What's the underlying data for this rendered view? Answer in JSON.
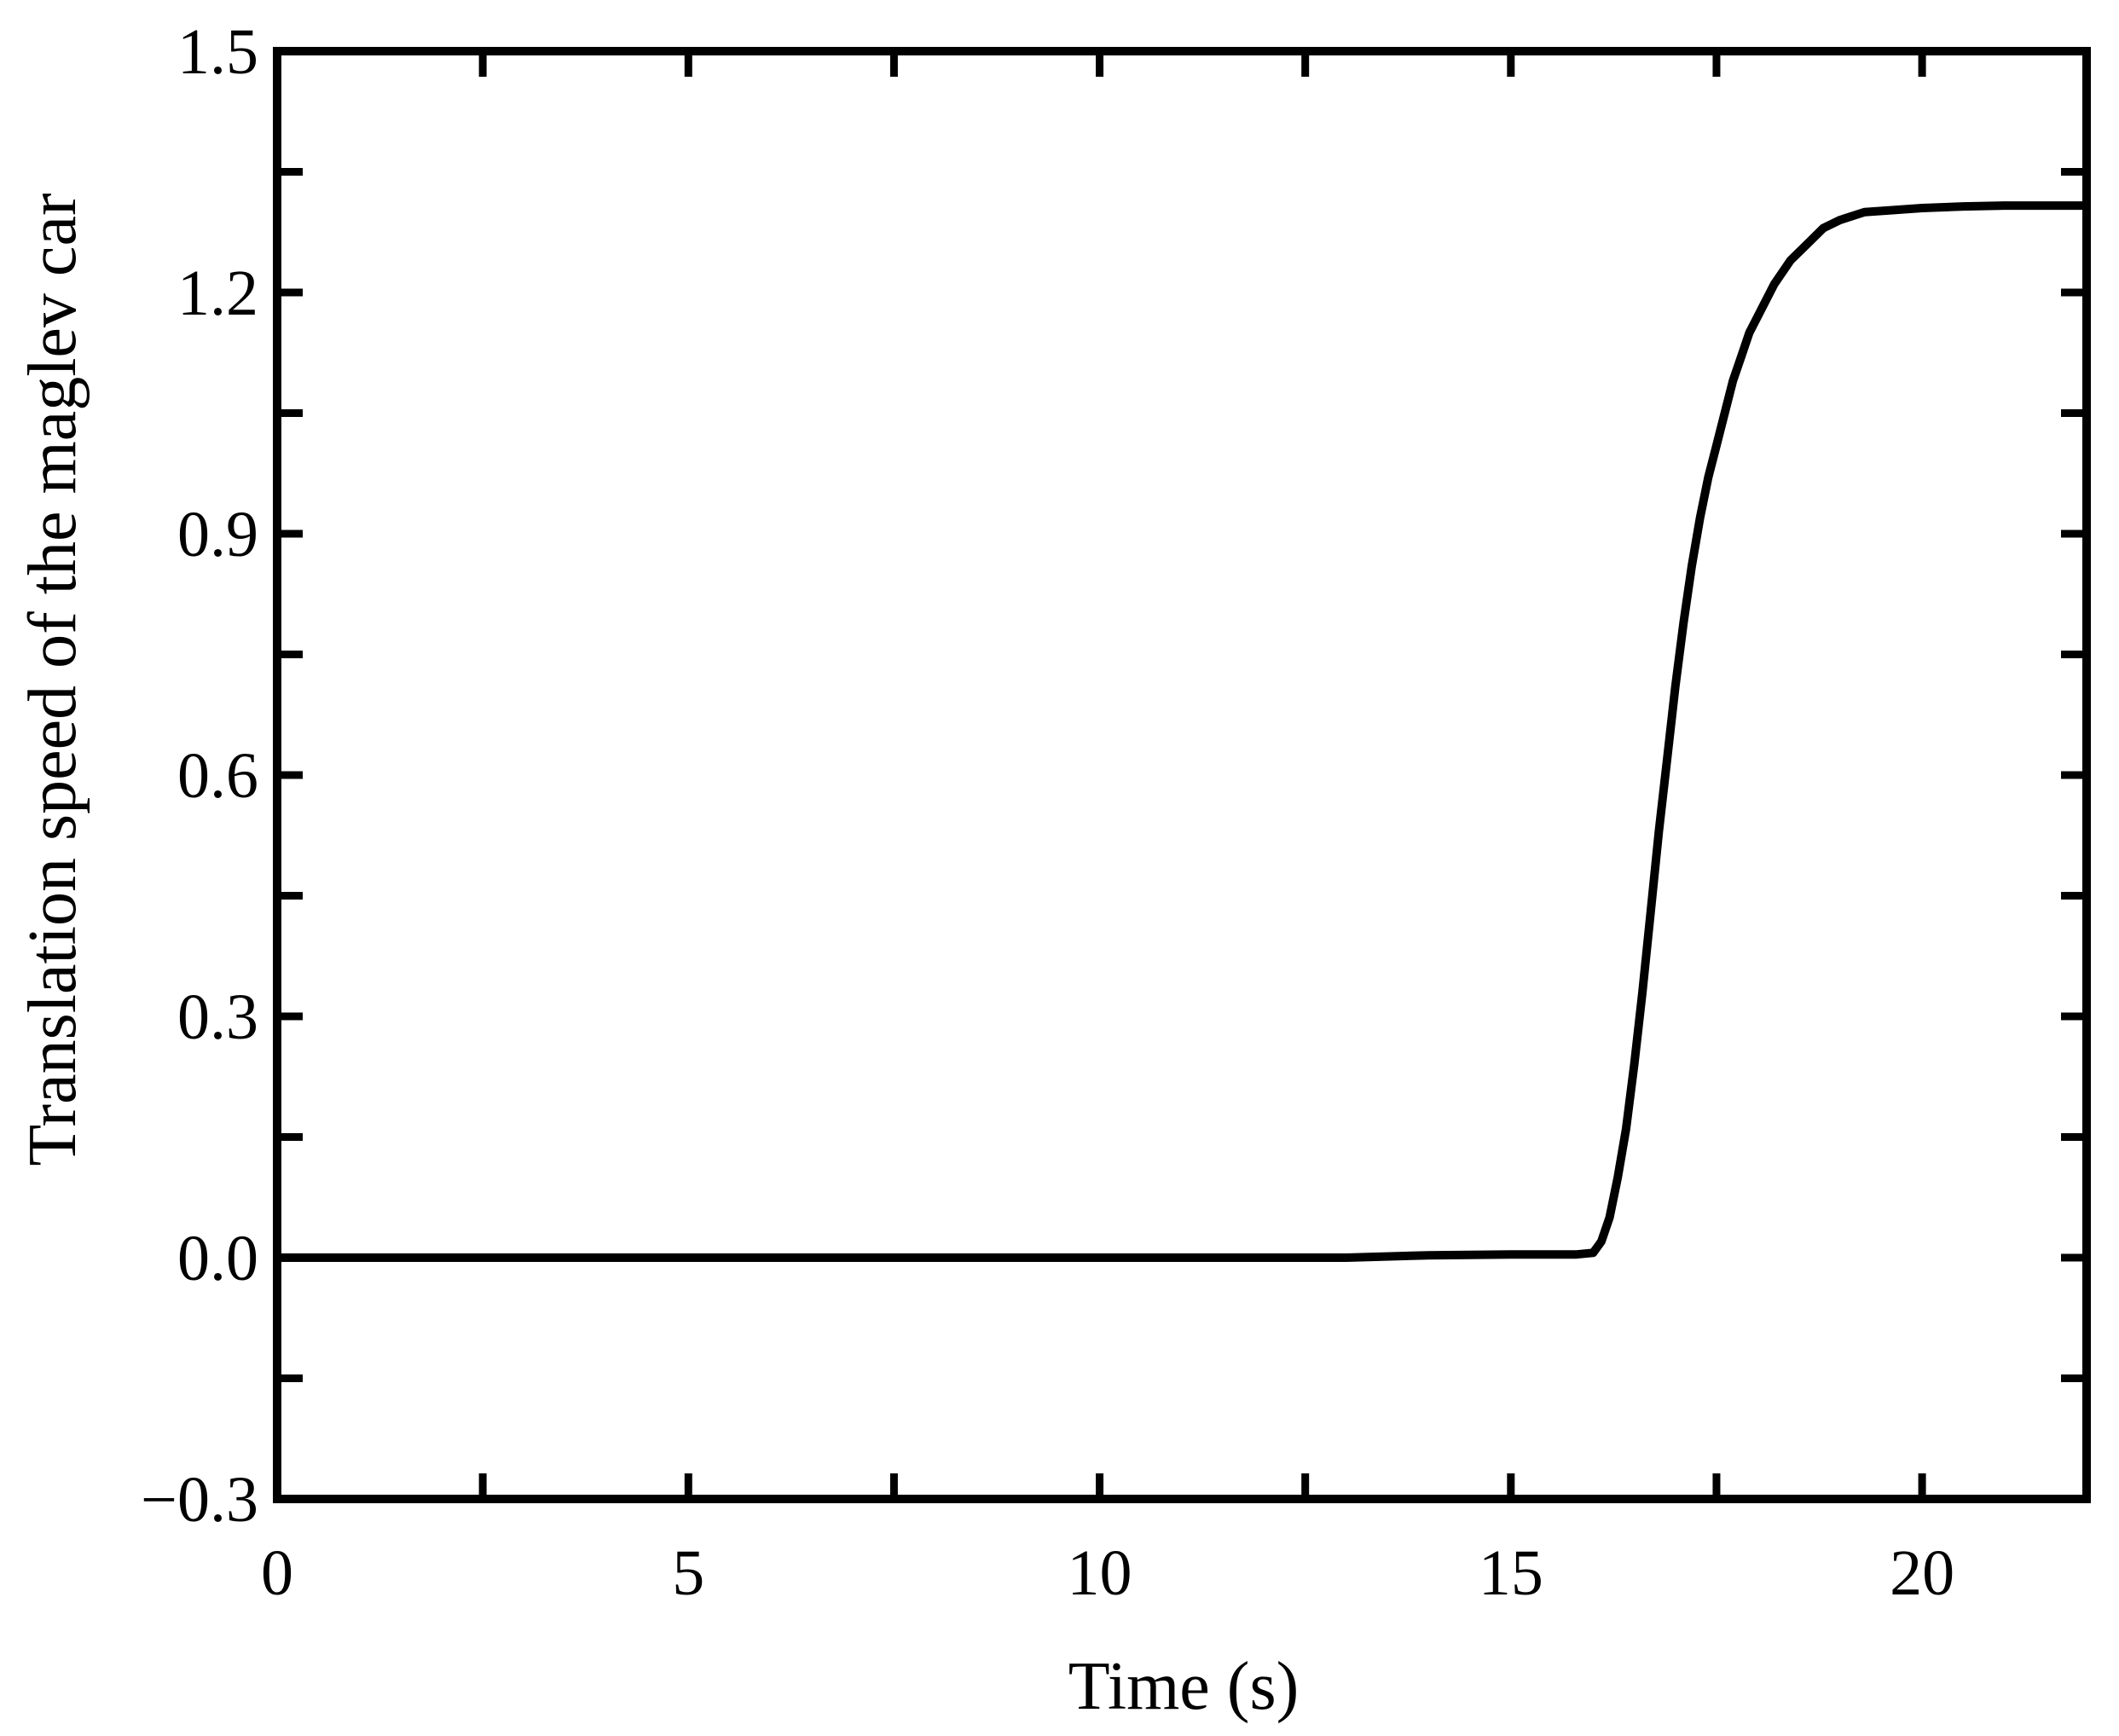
{
  "chart_data": {
    "type": "line",
    "title": "",
    "xlabel": "Time (s)",
    "ylabel": "Translation speed of the maglev car",
    "xlim": [
      0,
      22
    ],
    "ylim": [
      -0.3,
      1.5
    ],
    "x_ticks": [
      0,
      5,
      10,
      15,
      20
    ],
    "x_tick_labels": [
      "0",
      "5",
      "10",
      "15",
      "20"
    ],
    "x_minor_ticks": [
      2.5,
      7.5,
      12.5,
      17.5
    ],
    "y_ticks": [
      -0.3,
      0.0,
      0.3,
      0.6,
      0.9,
      1.2,
      1.5
    ],
    "y_tick_labels": [
      "−0.3",
      "0.0",
      "0.3",
      "0.6",
      "0.9",
      "1.2",
      "1.5"
    ],
    "y_minor_ticks": [
      -0.15,
      0.15,
      0.45,
      0.75,
      1.05,
      1.35
    ],
    "grid": false,
    "line_color": "#000000",
    "series": [
      {
        "x": [
          0,
          5,
          10,
          13,
          14,
          15,
          15.8,
          16.0,
          16.1,
          16.2,
          16.3,
          16.4,
          16.5,
          16.6,
          16.7,
          16.8,
          16.9,
          17.0,
          17.1,
          17.2,
          17.3,
          17.4,
          17.5,
          17.6,
          17.7,
          17.8,
          17.9,
          18.0,
          18.2,
          18.4,
          18.6,
          18.8,
          19.0,
          19.3,
          19.6,
          20.0,
          20.5,
          21.0,
          22.0
        ],
        "y": [
          0.0,
          0.0,
          0.0,
          0.0,
          0.003,
          0.004,
          0.004,
          0.006,
          0.02,
          0.05,
          0.1,
          0.16,
          0.24,
          0.33,
          0.43,
          0.53,
          0.62,
          0.71,
          0.79,
          0.86,
          0.92,
          0.97,
          1.01,
          1.05,
          1.09,
          1.12,
          1.15,
          1.17,
          1.21,
          1.24,
          1.26,
          1.28,
          1.29,
          1.3,
          1.302,
          1.305,
          1.307,
          1.308,
          1.308
        ]
      }
    ]
  }
}
